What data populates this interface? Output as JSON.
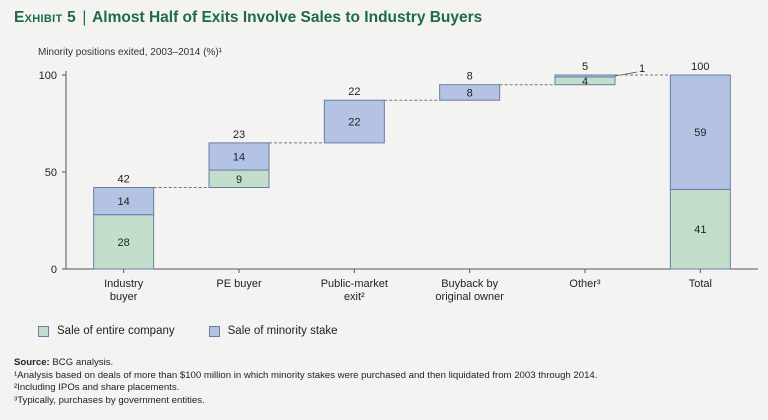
{
  "header": {
    "exhibit_label": "Exhibit 5",
    "separator": "|",
    "title": "Almost Half of Exits Involve Sales to Industry Buyers",
    "subtitle": "Minority positions exited, 2003–2014 (%)¹"
  },
  "colors": {
    "entire_company": "#c3dfcc",
    "minority_stake": "#b4c2e3",
    "bar_outline": "#6a7ba8",
    "connector": "#777777",
    "axis": "#555555"
  },
  "legend": {
    "items": [
      {
        "label": "Sale of entire company",
        "color": "#c3dfcc"
      },
      {
        "label": "Sale of minority stake",
        "color": "#b4c2e3"
      }
    ],
    "placement": "bottom-left"
  },
  "chart_data": {
    "type": "waterfall",
    "ylim": [
      0,
      100
    ],
    "yticks": [
      0,
      50,
      100
    ],
    "categories": [
      [
        "Industry",
        "buyer"
      ],
      [
        "PE buyer"
      ],
      [
        "Public-market",
        "exit²"
      ],
      [
        "Buyback by",
        "original owner"
      ],
      [
        "Other³"
      ],
      [
        "Total"
      ]
    ],
    "bars": [
      {
        "category": "Industry buyer",
        "base": 0,
        "entire_company": 28,
        "minority_stake": 14,
        "total": 42
      },
      {
        "category": "PE buyer",
        "base": 42,
        "entire_company": 9,
        "minority_stake": 14,
        "total": 23
      },
      {
        "category": "Public-market exit",
        "base": 65,
        "entire_company": 0,
        "minority_stake": 22,
        "total": 22
      },
      {
        "category": "Buyback by original owner",
        "base": 87,
        "entire_company": 0,
        "minority_stake": 8,
        "total": 8
      },
      {
        "category": "Other",
        "base": 95,
        "entire_company": 4,
        "minority_stake": 1,
        "total": 5
      },
      {
        "category": "Total",
        "base": 0,
        "entire_company": 41,
        "minority_stake": 59,
        "total": 100
      }
    ],
    "grid": false
  },
  "footer": {
    "source_label": "Source:",
    "source_text": "BCG analysis.",
    "notes": [
      "¹Analysis based on deals of more than $100 million in which minority stakes were purchased and then liquidated from 2003 through 2014.",
      "²Including IPOs and share placements.",
      "³Typically, purchases by government entities."
    ]
  }
}
